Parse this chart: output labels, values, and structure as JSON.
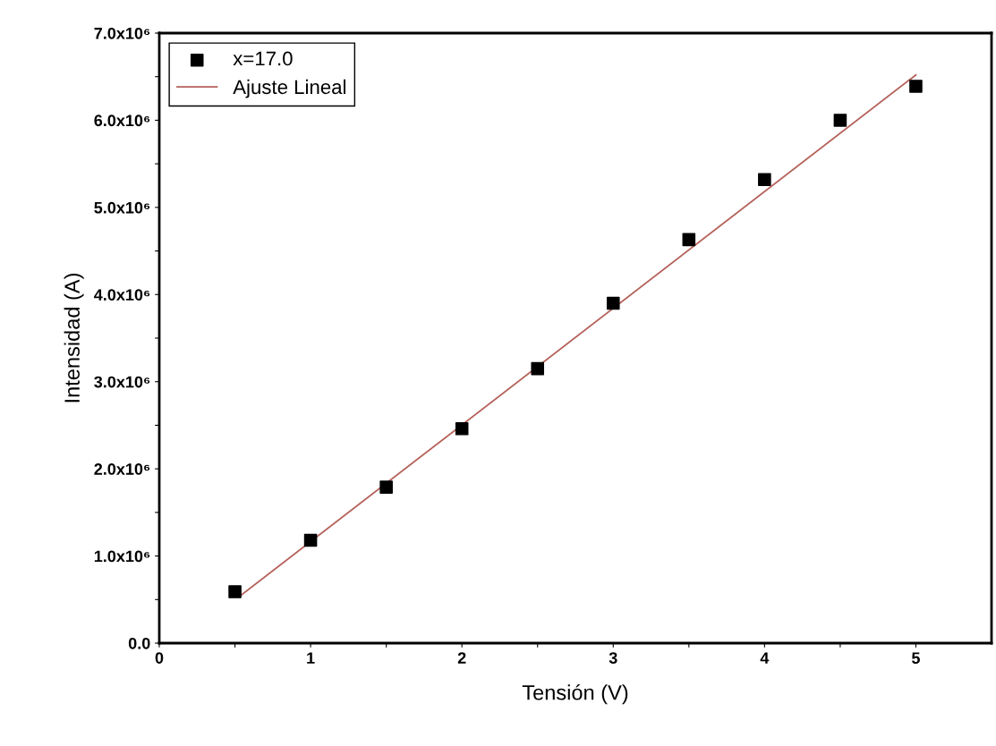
{
  "chart_data": {
    "type": "scatter",
    "xlabel": "Tensión (V)",
    "ylabel": "Intensidad (A)",
    "x": [
      0.5,
      1,
      1.5,
      2,
      2.5,
      3,
      3.5,
      4,
      4.5,
      5
    ],
    "series": [
      {
        "name": "x=17.0",
        "color": "#000000",
        "marker": "square",
        "values": [
          590000,
          1180000,
          1790000,
          2460000,
          3150000,
          3900000,
          4630000,
          5320000,
          6000000,
          6390000
        ]
      },
      {
        "name": "Ajuste Lineal",
        "type": "line",
        "color": "#b5615a",
        "marker": "none",
        "line_style": "solid",
        "x": [
          0.54,
          5
        ],
        "values": [
          550000,
          6520000
        ]
      }
    ],
    "xlim": [
      0,
      5.5
    ],
    "ylim": [
      0,
      7000000
    ],
    "xticks": [
      0,
      {
        "value": 0.5,
        "label": null
      },
      1,
      {
        "value": 1.5,
        "label": null
      },
      2,
      {
        "value": 2.5,
        "label": null
      },
      3,
      {
        "value": 3.5,
        "label": null
      },
      4,
      {
        "value": 4.5,
        "label": null
      },
      5
    ],
    "yticks": [
      {
        "value": 0,
        "label": "0.0"
      },
      {
        "value": 500000,
        "label": null
      },
      {
        "value": 1000000,
        "label": "1.0x10⁶"
      },
      {
        "value": 1500000,
        "label": null
      },
      {
        "value": 2000000,
        "label": "2.0x10⁶"
      },
      {
        "value": 2500000,
        "label": null
      },
      {
        "value": 3000000,
        "label": "3.0x10⁶"
      },
      {
        "value": 3500000,
        "label": null
      },
      {
        "value": 4000000,
        "label": "4.0x10⁶"
      },
      {
        "value": 4500000,
        "label": null
      },
      {
        "value": 5000000,
        "label": "5.0x10⁶"
      },
      {
        "value": 5500000,
        "label": null
      },
      {
        "value": 6000000,
        "label": "6.0x10⁶"
      },
      {
        "value": 6500000,
        "label": null
      },
      {
        "value": 7000000,
        "label": "7.0x10⁶"
      }
    ],
    "grid": false,
    "legend": "top left"
  }
}
